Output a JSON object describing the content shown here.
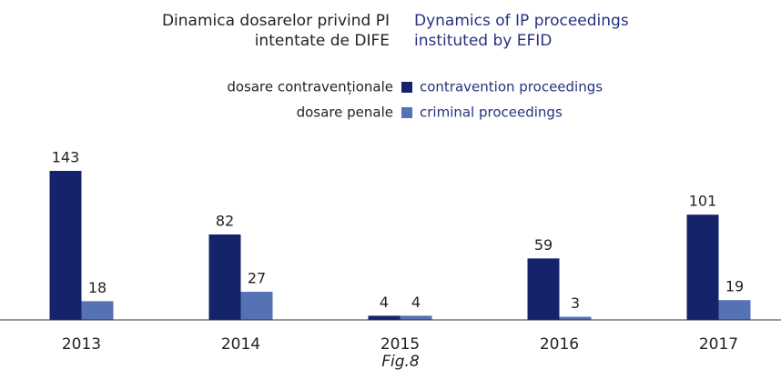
{
  "chart_data": {
    "type": "bar",
    "title_ro": "Dinamica dosarelor privind PI intentate de DIFE",
    "title_en": "Dynamics of IP proceedings instituted by EFID",
    "categories": [
      "2013",
      "2014",
      "2015",
      "2016",
      "2017"
    ],
    "series": [
      {
        "name": "contravention proceedings",
        "name_ro": "dosare contravenționale",
        "color": "#15236a",
        "values": [
          143,
          82,
          4,
          59,
          101
        ]
      },
      {
        "name": "criminal proceedings",
        "name_ro": "dosare penale",
        "color": "#5472b4",
        "values": [
          18,
          27,
          4,
          3,
          19
        ]
      }
    ],
    "ylim": [
      0,
      150
    ],
    "caption": "Fig.8"
  }
}
